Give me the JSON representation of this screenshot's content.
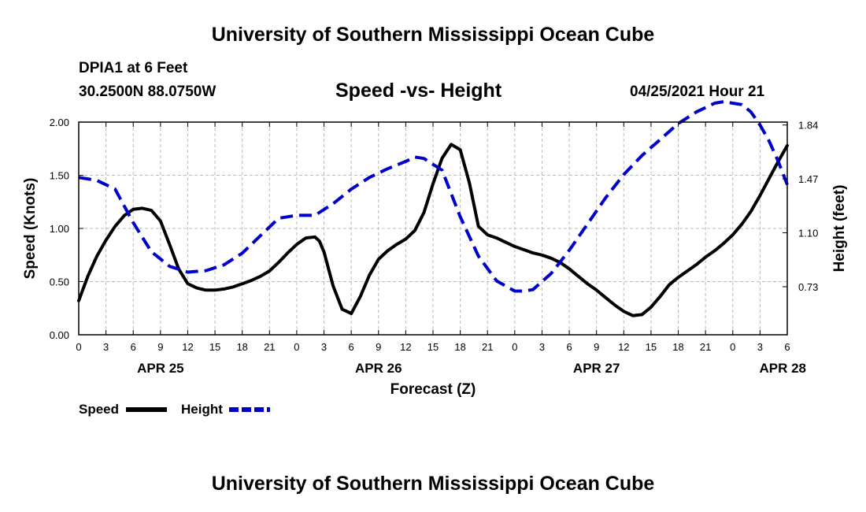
{
  "header": {
    "title": "University of Southern Mississippi Ocean Cube",
    "station": "DPIA1 at 6 Feet",
    "coordinates": "30.2500N  88.0750W",
    "chart_title": "Speed -vs- Height",
    "timestamp": "04/25/2021 Hour 21"
  },
  "footer": {
    "title": "University of Southern Mississippi Ocean Cube"
  },
  "legend": {
    "speed_label": "Speed",
    "height_label": "Height"
  },
  "colors": {
    "speed": "#000000",
    "height": "#0000cc",
    "grid": "#bbbbbb"
  },
  "chart_data": {
    "type": "line",
    "title": "Speed -vs- Height",
    "xlabel": "Forecast (Z)",
    "ylabel": "Speed (Knots)",
    "y2label": "Height (feet)",
    "x_unit": "hours from 00Z APR 25",
    "xlim": [
      0,
      78
    ],
    "x_ticks": [
      0,
      3,
      6,
      9,
      12,
      15,
      18,
      21,
      24,
      27,
      30,
      33,
      36,
      39,
      42,
      45,
      48,
      51,
      54,
      57,
      60,
      63,
      66,
      69,
      72,
      75,
      78
    ],
    "x_tick_labels": [
      "0",
      "3",
      "6",
      "9",
      "12",
      "15",
      "18",
      "21",
      "0",
      "3",
      "6",
      "9",
      "12",
      "15",
      "18",
      "21",
      "0",
      "3",
      "6",
      "9",
      "12",
      "15",
      "18",
      "21",
      "0",
      "3",
      "6"
    ],
    "date_labels": [
      {
        "x": 9,
        "label": "APR 25"
      },
      {
        "x": 33,
        "label": "APR 26"
      },
      {
        "x": 57,
        "label": "APR 27"
      },
      {
        "x": 77.5,
        "label": "APR 28"
      }
    ],
    "ylim": [
      0,
      2
    ],
    "y_ticks": [
      0,
      0.5,
      1.0,
      1.5,
      2.0
    ],
    "y_tick_labels": [
      "0.00",
      "0.50",
      "1.00",
      "1.50",
      "2.00"
    ],
    "y2lim": [
      0.4,
      1.86
    ],
    "y2_ticks": [
      0.73,
      1.1,
      1.47,
      1.84
    ],
    "y2_tick_labels": [
      "0.73",
      "1.10",
      "1.47",
      "1.84"
    ],
    "grid": true,
    "series": [
      {
        "name": "Speed",
        "axis": "left",
        "style": "solid",
        "x": [
          0,
          1,
          2,
          3,
          4,
          5,
          6,
          7,
          8,
          9,
          10,
          11,
          12,
          13,
          14,
          15,
          16,
          17,
          18,
          19,
          20,
          21,
          22,
          23,
          24,
          25,
          26,
          26.5,
          27,
          28,
          29,
          30,
          31,
          32,
          33,
          34,
          35,
          36,
          37,
          38,
          39,
          40,
          41,
          42,
          43,
          44,
          45,
          46,
          47,
          48,
          49,
          50,
          51,
          52,
          53,
          54,
          55,
          56,
          57,
          58,
          59,
          60,
          61,
          62,
          63,
          64,
          65,
          66,
          67,
          68,
          69,
          70,
          71,
          72,
          73,
          74,
          75,
          76,
          77,
          78
        ],
        "values": [
          0.32,
          0.55,
          0.74,
          0.89,
          1.02,
          1.12,
          1.18,
          1.19,
          1.17,
          1.07,
          0.85,
          0.62,
          0.48,
          0.44,
          0.42,
          0.42,
          0.43,
          0.45,
          0.48,
          0.51,
          0.55,
          0.6,
          0.68,
          0.77,
          0.85,
          0.91,
          0.92,
          0.88,
          0.78,
          0.46,
          0.24,
          0.2,
          0.36,
          0.56,
          0.71,
          0.79,
          0.85,
          0.9,
          0.98,
          1.15,
          1.42,
          1.66,
          1.79,
          1.74,
          1.43,
          1.02,
          0.94,
          0.91,
          0.87,
          0.83,
          0.8,
          0.77,
          0.75,
          0.72,
          0.68,
          0.62,
          0.55,
          0.48,
          0.42,
          0.35,
          0.28,
          0.22,
          0.18,
          0.19,
          0.26,
          0.36,
          0.47,
          0.54,
          0.6,
          0.66,
          0.73,
          0.79,
          0.86,
          0.94,
          1.04,
          1.16,
          1.31,
          1.47,
          1.63,
          1.78
        ]
      },
      {
        "name": "Height",
        "axis": "right",
        "style": "dashed",
        "x": [
          0,
          2,
          4,
          6,
          8,
          10,
          12,
          14,
          16,
          18,
          20,
          22,
          24,
          26,
          28,
          30,
          32,
          34,
          36,
          37,
          38,
          40,
          42,
          44,
          46,
          48,
          49,
          50,
          52,
          54,
          56,
          58,
          60,
          62,
          64,
          66,
          68,
          70,
          71,
          72,
          73,
          74,
          75,
          76,
          77,
          78
        ],
        "values": [
          1.48,
          1.46,
          1.4,
          1.17,
          0.97,
          0.87,
          0.83,
          0.84,
          0.88,
          0.96,
          1.08,
          1.2,
          1.22,
          1.22,
          1.3,
          1.4,
          1.48,
          1.54,
          1.59,
          1.62,
          1.61,
          1.53,
          1.21,
          0.94,
          0.77,
          0.7,
          0.7,
          0.71,
          0.82,
          0.98,
          1.16,
          1.34,
          1.5,
          1.63,
          1.74,
          1.85,
          1.93,
          1.99,
          2.0,
          1.99,
          1.98,
          1.93,
          1.84,
          1.73,
          1.59,
          1.43
        ]
      }
    ]
  }
}
